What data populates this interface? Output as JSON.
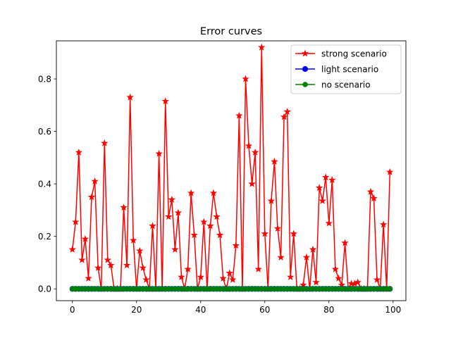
{
  "chart_data": {
    "type": "line",
    "title": "Error curves",
    "xlabel": "",
    "ylabel": "",
    "xlim": [
      -5,
      104
    ],
    "ylim": [
      -0.045,
      0.945
    ],
    "xticks": [
      0,
      20,
      40,
      60,
      80,
      100
    ],
    "yticks": [
      0.0,
      0.2,
      0.4,
      0.6,
      0.8
    ],
    "grid": false,
    "legend_position": "top-right",
    "x": [
      0,
      1,
      2,
      3,
      4,
      5,
      6,
      7,
      8,
      9,
      10,
      11,
      12,
      13,
      14,
      15,
      16,
      17,
      18,
      19,
      20,
      21,
      22,
      23,
      24,
      25,
      26,
      27,
      28,
      29,
      30,
      31,
      32,
      33,
      34,
      35,
      36,
      37,
      38,
      39,
      40,
      41,
      42,
      43,
      44,
      45,
      46,
      47,
      48,
      49,
      50,
      51,
      52,
      53,
      54,
      55,
      56,
      57,
      58,
      59,
      60,
      61,
      62,
      63,
      64,
      65,
      66,
      67,
      68,
      69,
      70,
      71,
      72,
      73,
      74,
      75,
      76,
      77,
      78,
      79,
      80,
      81,
      82,
      83,
      84,
      85,
      86,
      87,
      88,
      89,
      90,
      91,
      92,
      93,
      94,
      95,
      96,
      97,
      98,
      99
    ],
    "series": [
      {
        "name": "strong scenario",
        "color": "#ff0000",
        "marker": "star",
        "values": [
          0.15,
          0.255,
          0.52,
          0.11,
          0.19,
          0.04,
          0.35,
          0.41,
          0.08,
          0.0,
          0.555,
          0.11,
          0.09,
          0.0,
          0.0,
          0.0,
          0.31,
          0.09,
          0.73,
          0.185,
          0.0,
          0.145,
          0.08,
          0.035,
          0.0,
          0.24,
          0.0,
          0.515,
          0.0,
          0.715,
          0.275,
          0.34,
          0.15,
          0.29,
          0.045,
          0.0,
          0.075,
          0.365,
          0.205,
          0.0,
          0.045,
          0.255,
          0.0,
          0.24,
          0.365,
          0.275,
          0.205,
          0.04,
          0.0,
          0.06,
          0.035,
          0.165,
          0.66,
          0.0,
          0.8,
          0.545,
          0.4,
          0.52,
          0.075,
          0.92,
          0.21,
          0.0,
          0.335,
          0.485,
          0.23,
          0.12,
          0.655,
          0.675,
          0.045,
          0.21,
          0.0,
          0.0,
          0.015,
          0.12,
          0.0,
          0.15,
          0.025,
          0.385,
          0.335,
          0.425,
          0.25,
          0.415,
          0.075,
          0.04,
          0.015,
          0.175,
          0.0,
          0.02,
          0.02,
          0.025,
          0.0,
          0.0,
          0.0,
          0.37,
          0.345,
          0.035,
          0.0,
          0.245,
          0.0,
          0.445
        ]
      },
      {
        "name": "light scenario",
        "color": "#0000ff",
        "marker": "circle",
        "values": [
          0,
          0,
          0,
          0,
          0,
          0,
          0,
          0,
          0,
          0,
          0,
          0,
          0,
          0,
          0,
          0,
          0,
          0,
          0,
          0,
          0,
          0,
          0,
          0,
          0,
          0,
          0,
          0,
          0,
          0,
          0,
          0,
          0,
          0,
          0,
          0,
          0,
          0,
          0,
          0,
          0,
          0,
          0,
          0,
          0,
          0,
          0,
          0,
          0,
          0,
          0,
          0,
          0,
          0,
          0,
          0,
          0,
          0,
          0,
          0,
          0,
          0,
          0,
          0,
          0,
          0,
          0,
          0,
          0,
          0,
          0,
          0,
          0,
          0,
          0,
          0,
          0,
          0,
          0,
          0,
          0,
          0,
          0,
          0,
          0,
          0,
          0,
          0,
          0,
          0,
          0,
          0,
          0,
          0,
          0,
          0,
          0,
          0,
          0,
          0
        ]
      },
      {
        "name": "no scenario",
        "color": "#008000",
        "marker": "octagon",
        "values": [
          0,
          0,
          0,
          0,
          0,
          0,
          0,
          0,
          0,
          0,
          0,
          0,
          0,
          0,
          0,
          0,
          0,
          0,
          0,
          0,
          0,
          0,
          0,
          0,
          0,
          0,
          0,
          0,
          0,
          0,
          0,
          0,
          0,
          0,
          0,
          0,
          0,
          0,
          0,
          0,
          0,
          0,
          0,
          0,
          0,
          0,
          0,
          0,
          0,
          0,
          0,
          0,
          0,
          0,
          0,
          0,
          0,
          0,
          0,
          0,
          0,
          0,
          0,
          0,
          0,
          0,
          0,
          0,
          0,
          0,
          0,
          0,
          0,
          0,
          0,
          0,
          0,
          0,
          0,
          0,
          0,
          0,
          0,
          0,
          0,
          0,
          0,
          0,
          0,
          0,
          0,
          0,
          0,
          0,
          0,
          0,
          0,
          0,
          0,
          0
        ]
      }
    ]
  }
}
